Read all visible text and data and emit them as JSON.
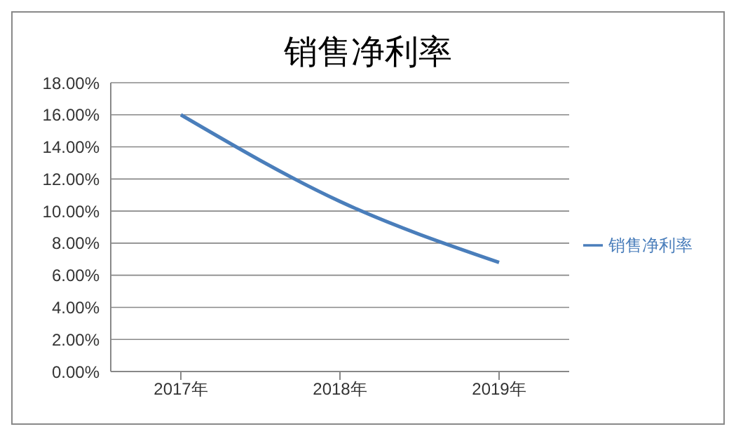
{
  "chart_data": {
    "type": "line",
    "title": "销售净利率",
    "categories": [
      "2017年",
      "2018年",
      "2019年"
    ],
    "series": [
      {
        "name": "销售净利率",
        "color": "#4a7ebb",
        "values": [
          16.0,
          10.6,
          6.8
        ]
      }
    ],
    "ylim": [
      0,
      18
    ],
    "yticks": [
      {
        "value": 0,
        "label": "0.00%"
      },
      {
        "value": 2,
        "label": "2.00%"
      },
      {
        "value": 4,
        "label": "4.00%"
      },
      {
        "value": 6,
        "label": "6.00%"
      },
      {
        "value": 8,
        "label": "8.00%"
      },
      {
        "value": 10,
        "label": "10.00%"
      },
      {
        "value": 12,
        "label": "12.00%"
      },
      {
        "value": 14,
        "label": "14.00%"
      },
      {
        "value": 16,
        "label": "16.00%"
      },
      {
        "value": 18,
        "label": "18.00%"
      }
    ],
    "grid": "y",
    "legend": "right",
    "marker": "none",
    "line_style": "solid"
  }
}
